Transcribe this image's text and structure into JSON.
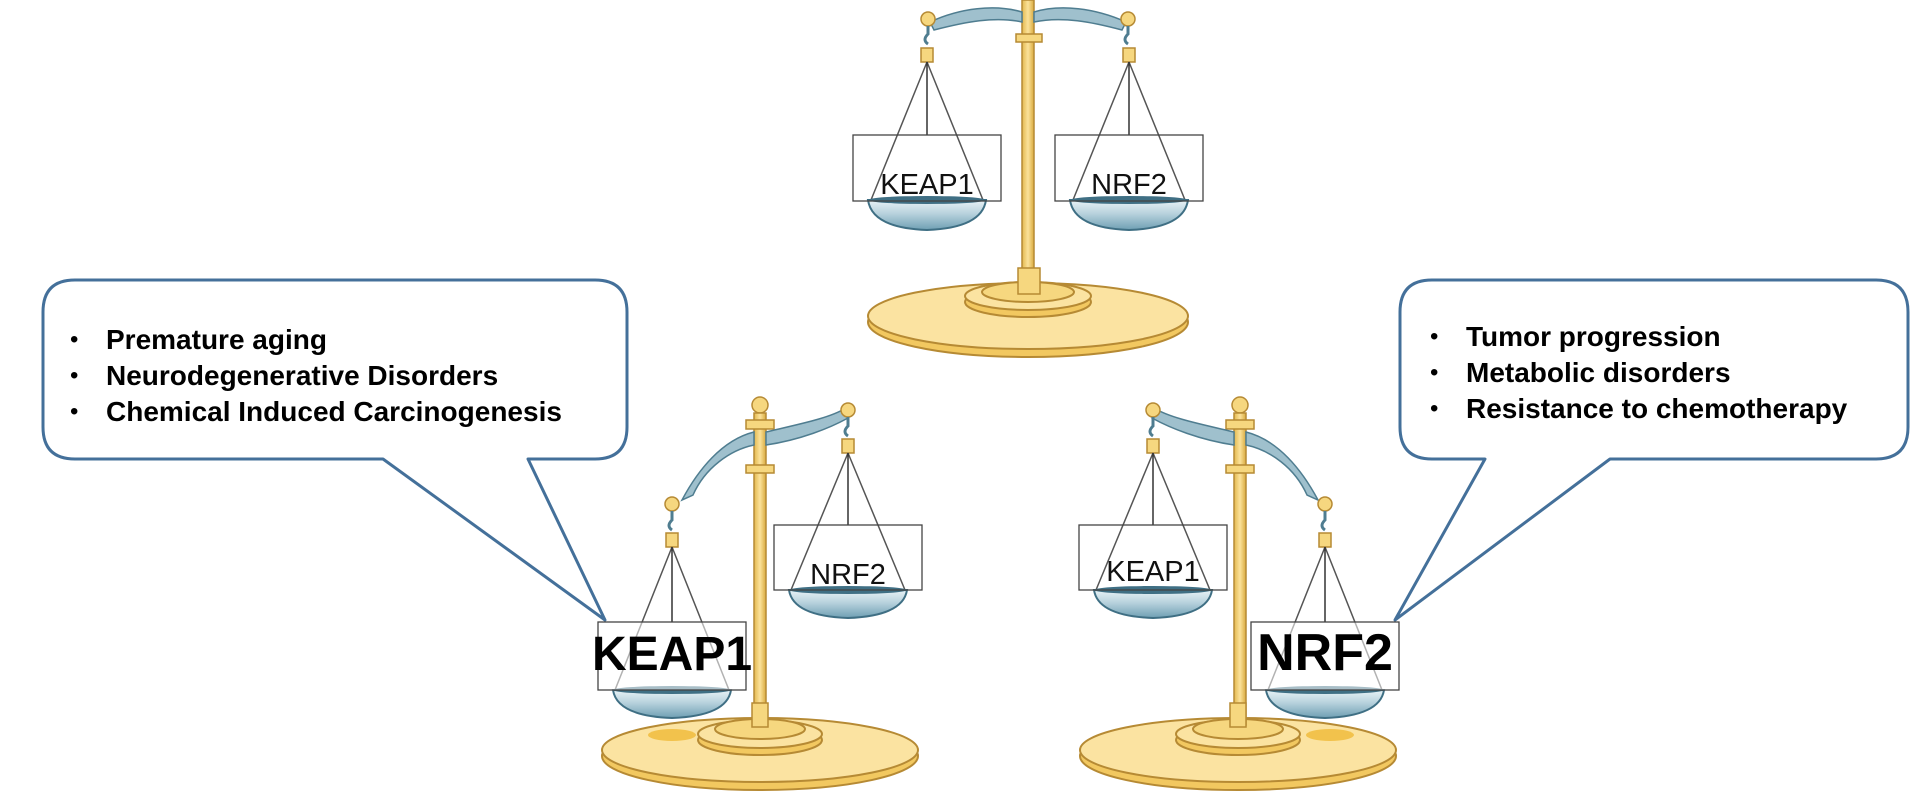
{
  "scales": {
    "balanced": {
      "left_label": "KEAP1",
      "right_label": "NRF2"
    },
    "keap1_dominant": {
      "left_label": "KEAP1",
      "right_label": "NRF2"
    },
    "nrf2_dominant": {
      "left_label": "KEAP1",
      "right_label": "NRF2"
    }
  },
  "callouts": {
    "left": {
      "items": [
        "Premature aging",
        "Neurodegenerative Disorders",
        "Chemical Induced Carcinogenesis"
      ]
    },
    "right": {
      "items": [
        "Tumor progression",
        "Metabolic disorders",
        "Resistance to chemotherapy"
      ]
    }
  },
  "colors": {
    "callout_border": "#44709a",
    "gold": "#f6d77f",
    "gold_dark": "#c9a04c",
    "beam_blue": "#8fb4c4",
    "pan_blue": "#5a8ea4"
  }
}
